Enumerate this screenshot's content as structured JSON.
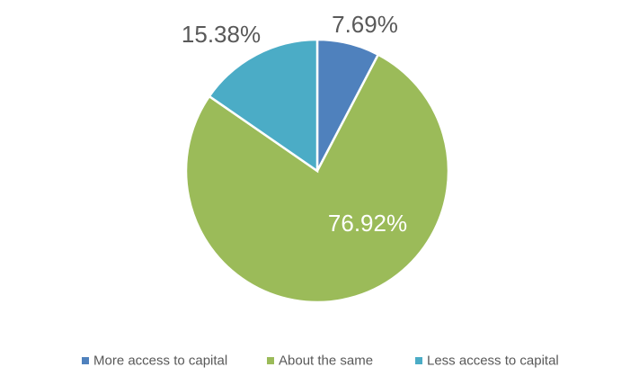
{
  "chart_data": {
    "type": "pie",
    "categories": [
      "More access to capital",
      "About the same",
      "Less access to capital"
    ],
    "values": [
      7.69,
      76.92,
      15.38
    ],
    "data_labels": [
      "7.69%",
      "76.92%",
      "15.38%"
    ],
    "colors": [
      "#4F81BD",
      "#9BBB59",
      "#4BACC6"
    ],
    "label_colors": [
      "#595959",
      "#FFFFFF",
      "#595959"
    ],
    "start_angle_deg": 0,
    "direction": "clockwise",
    "legend_position": "bottom",
    "title": ""
  }
}
